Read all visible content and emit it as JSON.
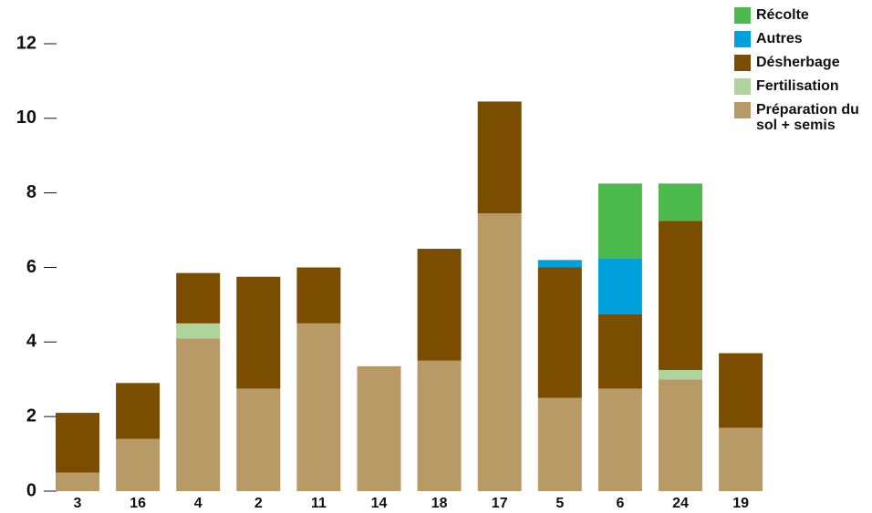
{
  "chart_data": {
    "type": "stacked-bar",
    "categories": [
      "3",
      "16",
      "4",
      "2",
      "11",
      "14",
      "18",
      "17",
      "5",
      "6",
      "24",
      "19"
    ],
    "series": [
      {
        "name": "Préparation du sol + semis",
        "color": "#b89a66",
        "values": [
          0.5,
          1.4,
          4.1,
          2.75,
          4.5,
          3.35,
          3.5,
          7.45,
          2.5,
          2.75,
          3.0,
          1.7
        ]
      },
      {
        "name": "Fertilisation",
        "color": "#acd49c",
        "values": [
          null,
          null,
          0.4,
          null,
          null,
          null,
          null,
          null,
          null,
          null,
          0.25,
          null
        ]
      },
      {
        "name": "Désherbage",
        "color": "#7a4d00",
        "values": [
          1.6,
          1.5,
          1.35,
          3.0,
          1.5,
          null,
          3.0,
          3.0,
          3.5,
          2.0,
          4.0,
          2.0
        ]
      },
      {
        "name": "Autres",
        "color": "#00a0dc",
        "values": [
          null,
          null,
          null,
          null,
          null,
          null,
          null,
          null,
          0.2,
          1.5,
          null,
          null
        ]
      },
      {
        "name": "Récolte",
        "color": "#4cba4c",
        "values": [
          null,
          null,
          null,
          null,
          null,
          null,
          null,
          null,
          null,
          2.0,
          1.0,
          null
        ]
      }
    ],
    "ylim": [
      0,
      12
    ],
    "yticks": [
      0,
      2,
      4,
      6,
      8,
      10,
      12
    ]
  }
}
